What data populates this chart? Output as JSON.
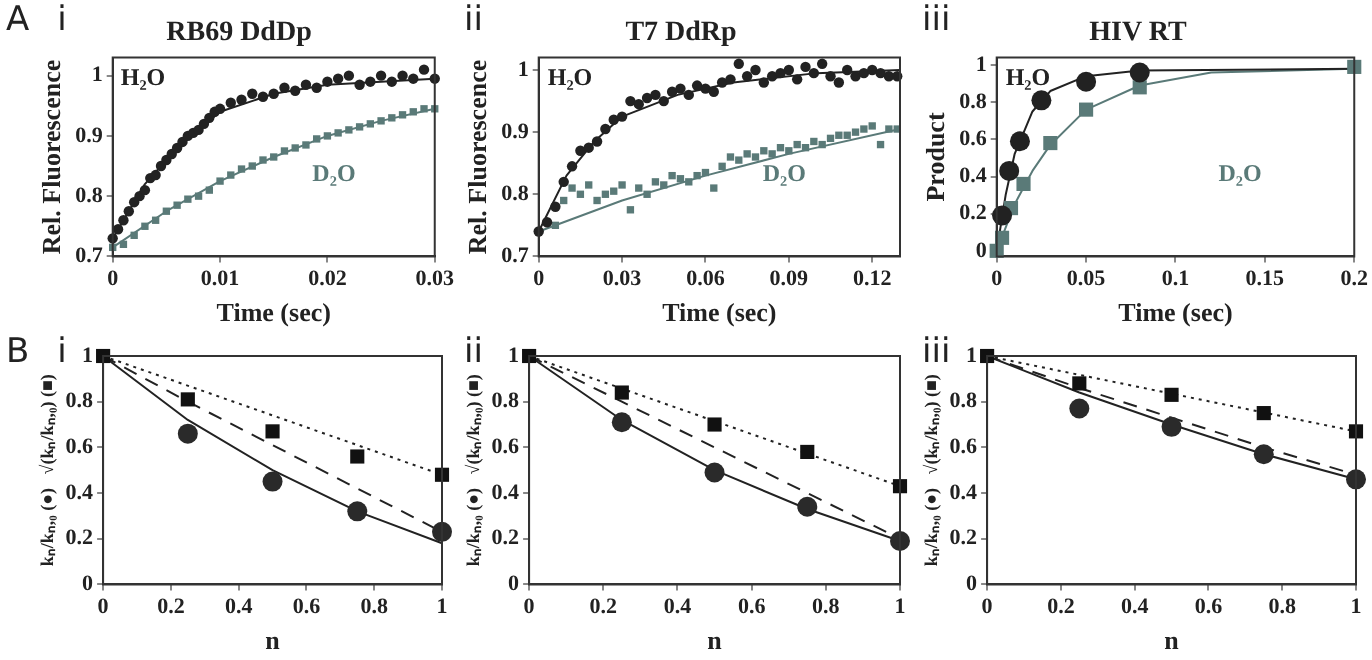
{
  "chart_data": [
    {
      "type": "scatter",
      "title": "RB69 DdDp",
      "xlabel": "Time (sec)",
      "ylabel": "Rel. Fluorescence",
      "annotations": [
        "A",
        "i"
      ],
      "xlim": [
        0,
        0.03
      ],
      "ylim": [
        0.7,
        1.03
      ],
      "xticks": [
        0,
        0.01,
        0.02,
        0.03
      ],
      "yticks": [
        0.7,
        0.8,
        0.9,
        1
      ],
      "legend": false,
      "grid": false,
      "series": [
        {
          "name": "H₂O",
          "color": "#222222",
          "marker": "circle",
          "x": [
            0,
            0.0005,
            0.001,
            0.0015,
            0.002,
            0.0025,
            0.003,
            0.0035,
            0.004,
            0.0045,
            0.005,
            0.0055,
            0.006,
            0.0065,
            0.007,
            0.0075,
            0.008,
            0.0085,
            0.009,
            0.0095,
            0.01,
            0.011,
            0.012,
            0.013,
            0.014,
            0.015,
            0.016,
            0.017,
            0.018,
            0.019,
            0.02,
            0.021,
            0.022,
            0.023,
            0.024,
            0.025,
            0.026,
            0.027,
            0.028,
            0.029,
            0.03
          ],
          "values": [
            0.73,
            0.745,
            0.76,
            0.775,
            0.79,
            0.8,
            0.81,
            0.83,
            0.835,
            0.85,
            0.86,
            0.87,
            0.88,
            0.89,
            0.9,
            0.905,
            0.91,
            0.92,
            0.93,
            0.94,
            0.945,
            0.955,
            0.96,
            0.97,
            0.965,
            0.97,
            0.98,
            0.975,
            0.985,
            0.98,
            0.99,
            0.995,
            1,
            0.985,
            0.99,
            1,
            0.99,
            1,
            0.995,
            1.01,
            0.995
          ]
        },
        {
          "name": "D₂O",
          "color": "#5a7a78",
          "marker": "square",
          "x": [
            0,
            0.001,
            0.002,
            0.003,
            0.004,
            0.005,
            0.006,
            0.007,
            0.008,
            0.009,
            0.01,
            0.011,
            0.012,
            0.013,
            0.014,
            0.015,
            0.016,
            0.017,
            0.018,
            0.019,
            0.02,
            0.021,
            0.022,
            0.023,
            0.024,
            0.025,
            0.026,
            0.027,
            0.028,
            0.029,
            0.03
          ],
          "values": [
            0.715,
            0.72,
            0.735,
            0.75,
            0.76,
            0.775,
            0.785,
            0.795,
            0.8,
            0.81,
            0.825,
            0.835,
            0.845,
            0.85,
            0.86,
            0.865,
            0.875,
            0.88,
            0.885,
            0.895,
            0.9,
            0.905,
            0.91,
            0.915,
            0.92,
            0.925,
            0.93,
            0.935,
            0.94,
            0.945,
            0.945
          ]
        },
        {
          "type": "line",
          "color": "#222222",
          "line_style": "solid",
          "x": [
            0,
            0.003,
            0.006,
            0.01,
            0.015,
            0.02,
            0.03
          ],
          "values": [
            0.73,
            0.82,
            0.88,
            0.94,
            0.97,
            0.985,
            0.995
          ]
        },
        {
          "type": "line",
          "color": "#5a7a78",
          "line_style": "solid",
          "x": [
            0,
            0.005,
            0.01,
            0.015,
            0.02,
            0.025,
            0.03
          ],
          "values": [
            0.715,
            0.775,
            0.825,
            0.865,
            0.9,
            0.925,
            0.945
          ]
        }
      ]
    },
    {
      "type": "scatter",
      "title": "T7 DdRp",
      "xlabel": "Time (sec)",
      "ylabel": "Rel. Fluorescence",
      "annotations": [
        "ii"
      ],
      "xlim": [
        0,
        0.13
      ],
      "ylim": [
        0.7,
        1.02
      ],
      "xticks": [
        0,
        0.03,
        0.06,
        0.09,
        0.12
      ],
      "yticks": [
        0.7,
        0.8,
        0.9,
        1
      ],
      "legend": false,
      "grid": false,
      "series": [
        {
          "name": "H₂O",
          "color": "#222222",
          "marker": "circle",
          "x": [
            0,
            0.003,
            0.006,
            0.009,
            0.012,
            0.015,
            0.018,
            0.021,
            0.024,
            0.027,
            0.03,
            0.033,
            0.036,
            0.039,
            0.042,
            0.045,
            0.048,
            0.051,
            0.054,
            0.057,
            0.06,
            0.063,
            0.066,
            0.069,
            0.072,
            0.075,
            0.078,
            0.081,
            0.084,
            0.087,
            0.09,
            0.093,
            0.096,
            0.099,
            0.102,
            0.105,
            0.108,
            0.111,
            0.114,
            0.117,
            0.12,
            0.123,
            0.126,
            0.129
          ],
          "values": [
            0.74,
            0.755,
            0.78,
            0.82,
            0.845,
            0.87,
            0.875,
            0.885,
            0.905,
            0.92,
            0.925,
            0.95,
            0.945,
            0.955,
            0.96,
            0.95,
            0.965,
            0.97,
            0.96,
            0.975,
            0.97,
            0.965,
            0.98,
            0.985,
            1.01,
            0.99,
            1,
            0.98,
            0.99,
            0.995,
            1,
            0.985,
            1.005,
            0.995,
            1.01,
            0.99,
            0.98,
            1,
            0.99,
            0.995,
            1,
            0.995,
            0.99,
            0.99
          ]
        },
        {
          "name": "D₂O",
          "color": "#5a7a78",
          "marker": "square",
          "x": [
            0.006,
            0.009,
            0.012,
            0.015,
            0.018,
            0.021,
            0.024,
            0.027,
            0.03,
            0.033,
            0.036,
            0.039,
            0.042,
            0.045,
            0.048,
            0.051,
            0.054,
            0.057,
            0.06,
            0.063,
            0.066,
            0.069,
            0.072,
            0.075,
            0.078,
            0.081,
            0.084,
            0.087,
            0.09,
            0.093,
            0.096,
            0.099,
            0.102,
            0.105,
            0.108,
            0.111,
            0.114,
            0.117,
            0.12,
            0.123,
            0.126,
            0.129
          ],
          "values": [
            0.75,
            0.79,
            0.81,
            0.8,
            0.815,
            0.79,
            0.8,
            0.805,
            0.815,
            0.775,
            0.81,
            0.8,
            0.82,
            0.815,
            0.83,
            0.825,
            0.82,
            0.83,
            0.835,
            0.81,
            0.845,
            0.86,
            0.855,
            0.865,
            0.86,
            0.87,
            0.865,
            0.875,
            0.87,
            0.88,
            0.875,
            0.885,
            0.88,
            0.89,
            0.895,
            0.895,
            0.9,
            0.905,
            0.91,
            0.88,
            0.905,
            0.905
          ]
        },
        {
          "type": "line",
          "color": "#222222",
          "line_style": "solid",
          "x": [
            0,
            0.01,
            0.02,
            0.03,
            0.05,
            0.07,
            0.1,
            0.13
          ],
          "values": [
            0.74,
            0.83,
            0.885,
            0.925,
            0.96,
            0.98,
            0.995,
            1
          ]
        },
        {
          "type": "line",
          "color": "#5a7a78",
          "line_style": "solid",
          "x": [
            0,
            0.03,
            0.06,
            0.09,
            0.13
          ],
          "values": [
            0.74,
            0.79,
            0.83,
            0.865,
            0.905
          ]
        }
      ]
    },
    {
      "type": "scatter",
      "title": "HIV RT",
      "xlabel": "Time (sec)",
      "ylabel": "Product",
      "annotations": [
        "iii"
      ],
      "xlim": [
        0,
        0.2
      ],
      "ylim": [
        -0.03,
        1.04
      ],
      "xticks": [
        0,
        0.05,
        0.1,
        0.15,
        0.2
      ],
      "yticks": [
        0,
        0.2,
        0.4,
        0.6,
        0.8,
        1
      ],
      "legend": false,
      "grid": false,
      "series": [
        {
          "name": "H₂O",
          "color": "#222222",
          "marker": "circle",
          "x": [
            0.003,
            0.007,
            0.013,
            0.025,
            0.05,
            0.08
          ],
          "values": [
            0.19,
            0.43,
            0.59,
            0.81,
            0.91,
            0.96
          ]
        },
        {
          "name": "D₂O",
          "color": "#5a7a78",
          "marker": "square",
          "x": [
            0,
            0.003,
            0.008,
            0.015,
            0.03,
            0.05,
            0.08,
            0.2
          ],
          "values": [
            0,
            0.07,
            0.23,
            0.36,
            0.58,
            0.76,
            0.88,
            0.99
          ]
        },
        {
          "type": "line",
          "color": "#222222",
          "line_style": "solid",
          "x": [
            0,
            0.005,
            0.01,
            0.02,
            0.03,
            0.05,
            0.08,
            0.2
          ],
          "values": [
            0,
            0.3,
            0.52,
            0.75,
            0.86,
            0.94,
            0.97,
            0.98
          ]
        },
        {
          "type": "line",
          "color": "#5a7a78",
          "line_style": "solid",
          "x": [
            0,
            0.01,
            0.02,
            0.03,
            0.05,
            0.08,
            0.12,
            0.2
          ],
          "values": [
            0,
            0.25,
            0.43,
            0.57,
            0.76,
            0.89,
            0.96,
            0.98
          ]
        }
      ]
    },
    {
      "type": "scatter",
      "xlabel": "n",
      "ylabel": "kₙ/kₙ,₀ (●)   √(kₙ/kₙ,₀) (■)",
      "annotations": [
        "B",
        "i"
      ],
      "xlim": [
        0,
        1
      ],
      "ylim": [
        0,
        1
      ],
      "xticks": [
        0,
        0.2,
        0.4,
        0.6,
        0.8,
        1
      ],
      "yticks": [
        0,
        0.2,
        0.4,
        0.6,
        0.8,
        1
      ],
      "legend": false,
      "grid": false,
      "series": [
        {
          "color": "#111111",
          "marker": "square",
          "x": [
            0,
            0.25,
            0.5,
            0.75,
            1
          ],
          "values": [
            1,
            0.81,
            0.67,
            0.56,
            0.48
          ]
        },
        {
          "color": "#2a2a2a",
          "marker": "circle",
          "x": [
            0.25,
            0.5,
            0.75,
            1
          ],
          "values": [
            0.66,
            0.45,
            0.32,
            0.23
          ]
        },
        {
          "type": "line",
          "color": "#222222",
          "line_style": "solid",
          "x": [
            0,
            0.25,
            0.5,
            0.75,
            1
          ],
          "values": [
            1,
            0.72,
            0.5,
            0.32,
            0.18
          ]
        },
        {
          "type": "line",
          "color": "#222222",
          "line_style": "dashed",
          "x": [
            0,
            0.25,
            0.5,
            0.75,
            1
          ],
          "values": [
            1,
            0.8,
            0.61,
            0.42,
            0.23
          ]
        },
        {
          "type": "line",
          "color": "#222222",
          "line_style": "dotted",
          "x": [
            0,
            1
          ],
          "values": [
            1,
            0.48
          ]
        }
      ]
    },
    {
      "type": "scatter",
      "xlabel": "n",
      "ylabel": "kₙ/kₙ,₀ (●)   √(kₙ/kₙ,₀) (■)",
      "annotations": [
        "ii"
      ],
      "xlim": [
        0,
        1
      ],
      "ylim": [
        0,
        1
      ],
      "xticks": [
        0,
        0.2,
        0.4,
        0.6,
        0.8,
        1
      ],
      "yticks": [
        0,
        0.2,
        0.4,
        0.6,
        0.8,
        1
      ],
      "legend": false,
      "grid": false,
      "series": [
        {
          "color": "#111111",
          "marker": "square",
          "x": [
            0,
            0.25,
            0.5,
            0.75,
            1
          ],
          "values": [
            1,
            0.84,
            0.7,
            0.58,
            0.43
          ]
        },
        {
          "color": "#2a2a2a",
          "marker": "circle",
          "x": [
            0.25,
            0.5,
            0.75,
            1
          ],
          "values": [
            0.71,
            0.49,
            0.34,
            0.19
          ]
        },
        {
          "type": "line",
          "color": "#222222",
          "line_style": "solid",
          "x": [
            0,
            0.25,
            0.5,
            0.75,
            1
          ],
          "values": [
            1,
            0.72,
            0.5,
            0.33,
            0.19
          ]
        },
        {
          "type": "line",
          "color": "#222222",
          "line_style": "dashed",
          "x": [
            0,
            0.25,
            0.5,
            0.75,
            1
          ],
          "values": [
            1,
            0.8,
            0.6,
            0.4,
            0.2
          ]
        },
        {
          "type": "line",
          "color": "#222222",
          "line_style": "dotted",
          "x": [
            0,
            1
          ],
          "values": [
            1,
            0.43
          ]
        }
      ]
    },
    {
      "type": "scatter",
      "xlabel": "n",
      "ylabel": "kₙ/kₙ,₀ (●)   √(kₙ/kₙ,₀) (■)",
      "annotations": [
        "iii"
      ],
      "xlim": [
        0,
        1
      ],
      "ylim": [
        0,
        1
      ],
      "xticks": [
        0,
        0.2,
        0.4,
        0.6,
        0.8,
        1
      ],
      "yticks": [
        0,
        0.2,
        0.4,
        0.6,
        0.8,
        1
      ],
      "legend": false,
      "grid": false,
      "series": [
        {
          "color": "#111111",
          "marker": "square",
          "x": [
            0,
            0.25,
            0.5,
            0.75,
            1
          ],
          "values": [
            1,
            0.88,
            0.83,
            0.75,
            0.67
          ]
        },
        {
          "color": "#2a2a2a",
          "marker": "circle",
          "x": [
            0.25,
            0.5,
            0.75,
            1
          ],
          "values": [
            0.77,
            0.69,
            0.57,
            0.46
          ]
        },
        {
          "type": "line",
          "color": "#222222",
          "line_style": "solid",
          "x": [
            0,
            0.25,
            0.5,
            0.75,
            1
          ],
          "values": [
            1,
            0.84,
            0.7,
            0.57,
            0.46
          ]
        },
        {
          "type": "line",
          "color": "#222222",
          "line_style": "dashed",
          "x": [
            0,
            0.25,
            0.5,
            0.75,
            1
          ],
          "values": [
            1,
            0.86,
            0.73,
            0.6,
            0.48
          ]
        },
        {
          "type": "line",
          "color": "#222222",
          "line_style": "dotted",
          "x": [
            0,
            1
          ],
          "values": [
            1,
            0.67
          ]
        }
      ]
    }
  ]
}
